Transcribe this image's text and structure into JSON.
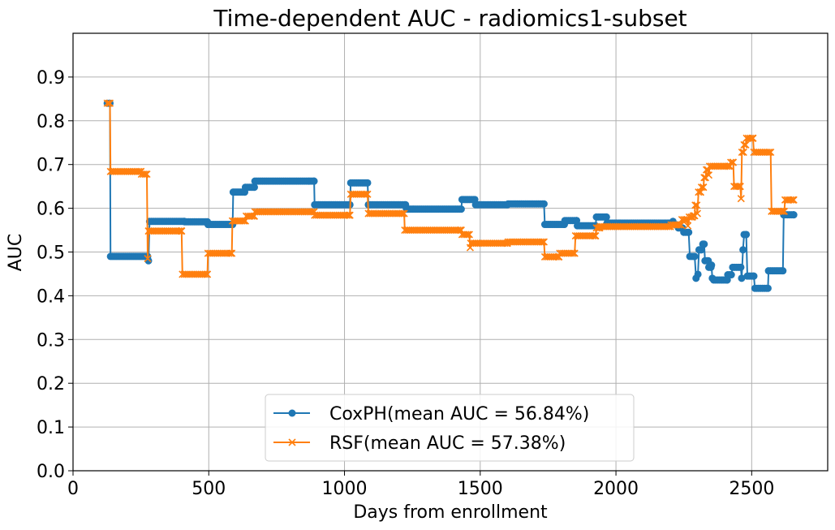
{
  "chart_data": {
    "type": "line",
    "title": "Time-dependent AUC - radiomics1-subset",
    "xlabel": "Days from enrollment",
    "ylabel": "AUC",
    "xlim": [
      0,
      2780
    ],
    "ylim": [
      0,
      1.0
    ],
    "xticks": [
      0,
      500,
      1000,
      1500,
      2000,
      2500
    ],
    "yticks": [
      0.0,
      0.1,
      0.2,
      0.3,
      0.4,
      0.5,
      0.6,
      0.7,
      0.8,
      0.9
    ],
    "ytick_labels": [
      "0.0",
      "0.1",
      "0.2",
      "0.3",
      "0.4",
      "0.5",
      "0.6",
      "0.7",
      "0.8",
      "0.9"
    ],
    "grid": true,
    "legend_position": "bottom-center",
    "series": [
      {
        "name": "CoxPH(mean AUC = 56.84%)",
        "color": "#1f77b4",
        "marker": "circle",
        "steps": [
          [
            126,
            0.84
          ],
          [
            136,
            0.84
          ],
          [
            138,
            0.49
          ],
          [
            275,
            0.49
          ],
          [
            278,
            0.48
          ],
          [
            282,
            0.57
          ],
          [
            410,
            0.57
          ],
          [
            412,
            0.569
          ],
          [
            495,
            0.569
          ],
          [
            497,
            0.563
          ],
          [
            588,
            0.563
          ],
          [
            590,
            0.637
          ],
          [
            632,
            0.637
          ],
          [
            635,
            0.648
          ],
          [
            668,
            0.648
          ],
          [
            670,
            0.662
          ],
          [
            888,
            0.662
          ],
          [
            890,
            0.608
          ],
          [
            1020,
            0.608
          ],
          [
            1023,
            0.658
          ],
          [
            1085,
            0.658
          ],
          [
            1088,
            0.608
          ],
          [
            1225,
            0.608
          ],
          [
            1228,
            0.598
          ],
          [
            1430,
            0.598
          ],
          [
            1433,
            0.62
          ],
          [
            1480,
            0.62
          ],
          [
            1483,
            0.608
          ],
          [
            1600,
            0.608
          ],
          [
            1603,
            0.61
          ],
          [
            1735,
            0.61
          ],
          [
            1738,
            0.563
          ],
          [
            1810,
            0.563
          ],
          [
            1812,
            0.572
          ],
          [
            1855,
            0.572
          ],
          [
            1858,
            0.56
          ],
          [
            1925,
            0.56
          ],
          [
            1928,
            0.58
          ],
          [
            1965,
            0.58
          ],
          [
            1967,
            0.566
          ],
          [
            2195,
            0.566
          ],
          [
            2198,
            0.565
          ],
          [
            2210,
            0.57
          ],
          [
            2225,
            0.562
          ],
          [
            2230,
            0.555
          ],
          [
            2245,
            0.555
          ],
          [
            2250,
            0.545
          ],
          [
            2268,
            0.545
          ],
          [
            2272,
            0.49
          ],
          [
            2290,
            0.49
          ],
          [
            2295,
            0.44
          ],
          [
            2302,
            0.449
          ],
          [
            2306,
            0.505
          ],
          [
            2315,
            0.505
          ],
          [
            2320,
            0.518
          ],
          [
            2325,
            0.518
          ],
          [
            2328,
            0.48
          ],
          [
            2340,
            0.48
          ],
          [
            2342,
            0.465
          ],
          [
            2350,
            0.465
          ],
          [
            2352,
            0.47
          ],
          [
            2355,
            0.44
          ],
          [
            2360,
            0.436
          ],
          [
            2410,
            0.436
          ],
          [
            2412,
            0.448
          ],
          [
            2425,
            0.448
          ],
          [
            2430,
            0.465
          ],
          [
            2460,
            0.465
          ],
          [
            2463,
            0.44
          ],
          [
            2468,
            0.505
          ],
          [
            2472,
            0.54
          ],
          [
            2480,
            0.54
          ],
          [
            2484,
            0.445
          ],
          [
            2508,
            0.445
          ],
          [
            2512,
            0.417
          ],
          [
            2560,
            0.417
          ],
          [
            2562,
            0.457
          ],
          [
            2615,
            0.457
          ],
          [
            2618,
            0.585
          ],
          [
            2655,
            0.585
          ]
        ]
      },
      {
        "name": "RSF(mean AUC = 57.38%)",
        "color": "#ff7f0e",
        "marker": "x",
        "steps": [
          [
            126,
            0.84
          ],
          [
            136,
            0.84
          ],
          [
            138,
            0.684
          ],
          [
            250,
            0.684
          ],
          [
            252,
            0.678
          ],
          [
            272,
            0.678
          ],
          [
            275,
            0.485
          ],
          [
            278,
            0.548
          ],
          [
            400,
            0.548
          ],
          [
            403,
            0.449
          ],
          [
            495,
            0.449
          ],
          [
            497,
            0.497
          ],
          [
            585,
            0.497
          ],
          [
            587,
            0.571
          ],
          [
            635,
            0.571
          ],
          [
            638,
            0.582
          ],
          [
            668,
            0.582
          ],
          [
            670,
            0.592
          ],
          [
            888,
            0.592
          ],
          [
            890,
            0.584
          ],
          [
            1020,
            0.584
          ],
          [
            1023,
            0.632
          ],
          [
            1085,
            0.632
          ],
          [
            1088,
            0.588
          ],
          [
            1220,
            0.588
          ],
          [
            1222,
            0.55
          ],
          [
            1430,
            0.55
          ],
          [
            1433,
            0.54
          ],
          [
            1460,
            0.54
          ],
          [
            1463,
            0.51
          ],
          [
            1465,
            0.52
          ],
          [
            1600,
            0.52
          ],
          [
            1603,
            0.523
          ],
          [
            1735,
            0.523
          ],
          [
            1738,
            0.489
          ],
          [
            1790,
            0.489
          ],
          [
            1793,
            0.497
          ],
          [
            1848,
            0.497
          ],
          [
            1851,
            0.537
          ],
          [
            1925,
            0.537
          ],
          [
            1928,
            0.555
          ],
          [
            1940,
            0.555
          ],
          [
            1942,
            0.558
          ],
          [
            2200,
            0.558
          ],
          [
            2203,
            0.562
          ],
          [
            2240,
            0.562
          ],
          [
            2243,
            0.574
          ],
          [
            2262,
            0.574
          ],
          [
            2265,
            0.56
          ],
          [
            2270,
            0.58
          ],
          [
            2282,
            0.58
          ],
          [
            2285,
            0.583
          ],
          [
            2290,
            0.583
          ],
          [
            2292,
            0.607
          ],
          [
            2298,
            0.607
          ],
          [
            2300,
            0.588
          ],
          [
            2304,
            0.637
          ],
          [
            2312,
            0.637
          ],
          [
            2315,
            0.648
          ],
          [
            2322,
            0.648
          ],
          [
            2325,
            0.67
          ],
          [
            2330,
            0.67
          ],
          [
            2333,
            0.688
          ],
          [
            2338,
            0.688
          ],
          [
            2342,
            0.676
          ],
          [
            2345,
            0.696
          ],
          [
            2420,
            0.696
          ],
          [
            2423,
            0.705
          ],
          [
            2432,
            0.705
          ],
          [
            2435,
            0.65
          ],
          [
            2458,
            0.65
          ],
          [
            2461,
            0.622
          ],
          [
            2464,
            0.728
          ],
          [
            2470,
            0.728
          ],
          [
            2472,
            0.745
          ],
          [
            2478,
            0.745
          ],
          [
            2481,
            0.76
          ],
          [
            2505,
            0.76
          ],
          [
            2508,
            0.728
          ],
          [
            2570,
            0.728
          ],
          [
            2573,
            0.593
          ],
          [
            2620,
            0.593
          ],
          [
            2623,
            0.619
          ],
          [
            2655,
            0.619
          ]
        ]
      }
    ]
  }
}
